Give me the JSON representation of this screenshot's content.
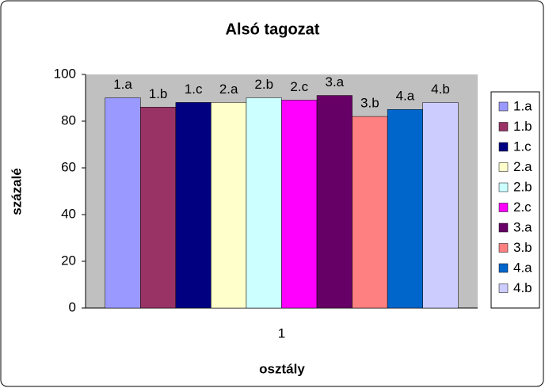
{
  "chart_data": {
    "type": "bar",
    "title": "Alsó tagozat",
    "x_label": "osztály",
    "y_label": "százalé",
    "categories": [
      "1"
    ],
    "series": [
      {
        "name": "1.a",
        "color": "#9999ff",
        "values": [
          90
        ]
      },
      {
        "name": "1.b",
        "color": "#993366",
        "values": [
          86
        ]
      },
      {
        "name": "1.c",
        "color": "#000080",
        "values": [
          88
        ]
      },
      {
        "name": "2.a",
        "color": "#ffffcc",
        "values": [
          88
        ]
      },
      {
        "name": "2.b",
        "color": "#ccffff",
        "values": [
          90
        ]
      },
      {
        "name": "2.c",
        "color": "#ff00ff",
        "values": [
          89
        ]
      },
      {
        "name": "3.a",
        "color": "#660066",
        "values": [
          91
        ]
      },
      {
        "name": "3.b",
        "color": "#ff8080",
        "values": [
          82
        ]
      },
      {
        "name": "4.a",
        "color": "#0066cc",
        "values": [
          85
        ]
      },
      {
        "name": "4.b",
        "color": "#ccccff",
        "values": [
          88
        ]
      }
    ],
    "ylim": [
      0,
      100
    ],
    "yticks": [
      0,
      20,
      40,
      60,
      80,
      100
    ],
    "grid": false,
    "legend": "right"
  }
}
